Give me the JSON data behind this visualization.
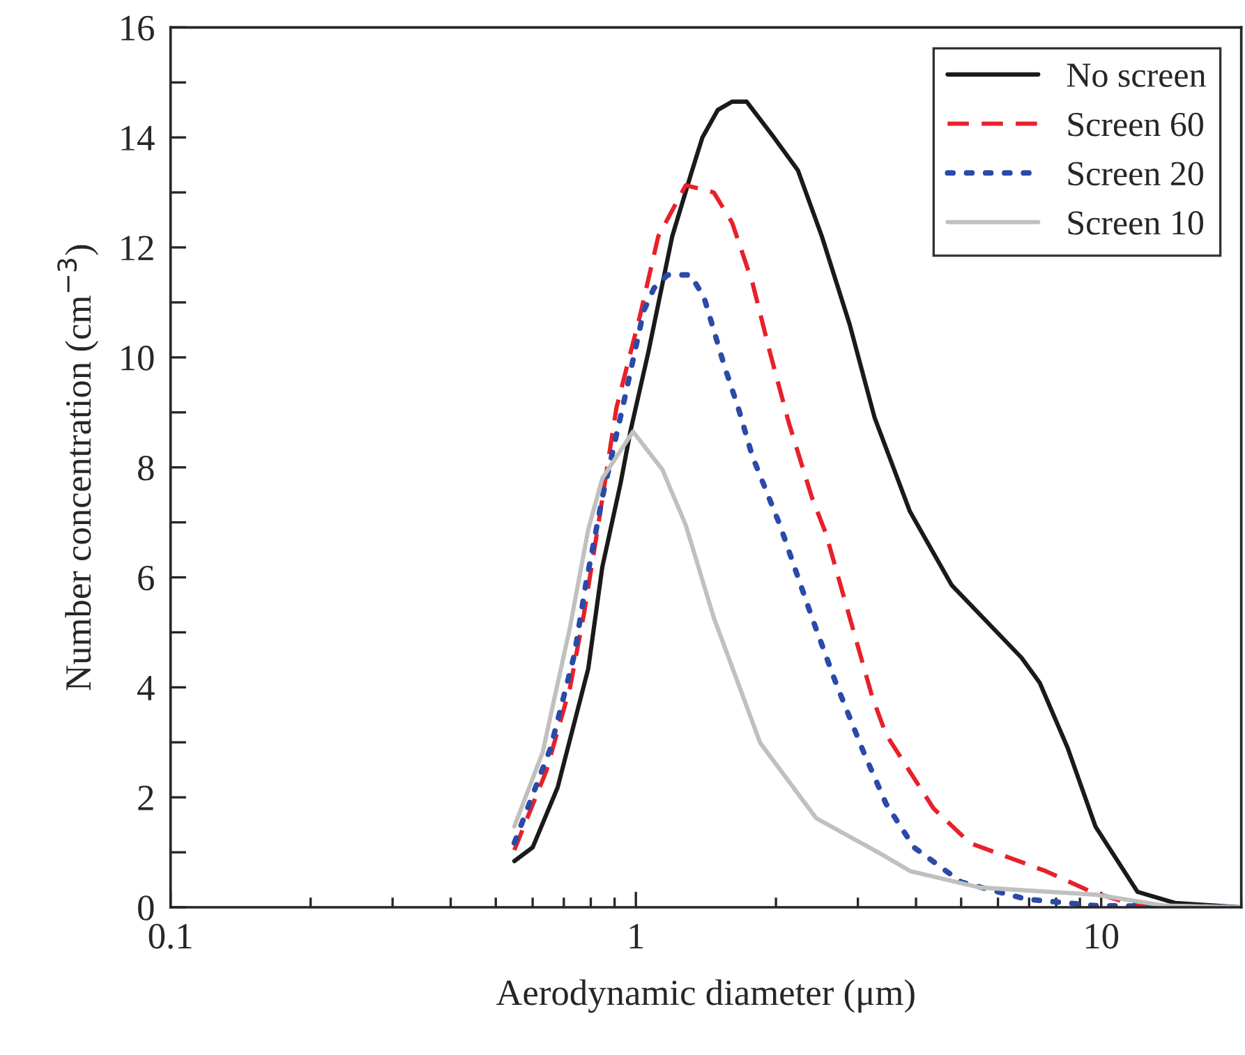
{
  "chart_data": {
    "type": "line",
    "xlabel": "Aerodynamic diameter (μm)",
    "ylabel": "Number concentration (cm$^{−3}$)",
    "log": "x",
    "xlim": [
      0.1,
      20
    ],
    "xticks": [
      {
        "value": 0.1,
        "label": "0.1"
      },
      1,
      10
    ],
    "ylim": [
      0,
      16
    ],
    "yticks": [
      0,
      {
        "value": 1,
        "label": null
      },
      2,
      {
        "value": 3,
        "label": null
      },
      4,
      {
        "value": 5,
        "label": null
      },
      6,
      {
        "value": 7,
        "label": null
      },
      8,
      {
        "value": 9,
        "label": null
      },
      10,
      {
        "value": 11,
        "label": null
      },
      12,
      {
        "value": 13,
        "label": null
      },
      14,
      {
        "value": 15,
        "label": null
      },
      16
    ],
    "grid": false,
    "legend": "top right",
    "series": [
      {
        "name": "No screen",
        "color": "#1a1a1a",
        "line_style": "solid",
        "x": [
          0.548,
          0.6,
          0.679,
          0.79,
          0.847,
          0.927,
          0.973,
          1.064,
          1.197,
          1.31,
          1.39,
          1.5,
          1.61,
          1.73,
          1.98,
          2.23,
          2.51,
          2.88,
          3.26,
          3.88,
          4.77,
          6.74,
          7.38,
          8.47,
          9.72,
          11.97,
          14.4,
          20
        ],
        "values": [
          0.84,
          1.09,
          2.18,
          4.34,
          6.19,
          7.71,
          8.65,
          10.1,
          12.2,
          13.3,
          14.0,
          14.5,
          14.65,
          14.65,
          14.0,
          13.4,
          12.2,
          10.6,
          8.9,
          7.2,
          5.86,
          4.54,
          4.08,
          2.9,
          1.47,
          0.28,
          0.08,
          0
        ]
      },
      {
        "name": "Screen 60",
        "color": "#e8202a",
        "line_style": "dashed",
        "x": [
          0.548,
          0.642,
          0.722,
          0.774,
          0.83,
          0.908,
          1.02,
          1.117,
          1.28,
          1.47,
          1.61,
          1.78,
          1.94,
          2.13,
          2.39,
          2.56,
          3.22,
          3.45,
          4.36,
          5.22,
          7.59,
          9.53,
          11.97,
          20
        ],
        "values": [
          1.04,
          2.48,
          4.0,
          5.35,
          6.95,
          9.08,
          10.75,
          12.2,
          13.13,
          13.0,
          12.45,
          11.36,
          10.1,
          8.82,
          7.45,
          6.8,
          3.83,
          3.14,
          1.8,
          1.17,
          0.66,
          0.28,
          0.03,
          0
        ]
      },
      {
        "name": "Screen 20",
        "color": "#2b4aa8",
        "line_style": "dotted",
        "x": [
          0.548,
          0.656,
          0.738,
          0.78,
          0.847,
          0.94,
          1.04,
          1.094,
          1.17,
          1.31,
          1.4,
          1.55,
          1.66,
          1.78,
          2.04,
          2.39,
          2.69,
          3.09,
          3.45,
          3.96,
          5.0,
          6.88,
          9.72,
          20
        ],
        "values": [
          1.17,
          2.9,
          4.6,
          5.86,
          7.45,
          9.15,
          10.85,
          11.26,
          11.5,
          11.5,
          11.1,
          9.84,
          9.08,
          8.2,
          6.95,
          5.27,
          4.08,
          2.81,
          1.88,
          1.09,
          0.46,
          0.15,
          0.03,
          0
        ]
      },
      {
        "name": "Screen 10",
        "color": "#c0c0c0",
        "line_style": "solid",
        "x": [
          0.548,
          0.63,
          0.722,
          0.79,
          0.847,
          0.986,
          1.14,
          1.28,
          1.47,
          1.85,
          2.44,
          3.38,
          3.88,
          5.48,
          9.72,
          13.7,
          20
        ],
        "values": [
          1.47,
          2.81,
          5.1,
          6.87,
          7.8,
          8.65,
          7.96,
          6.95,
          5.27,
          2.99,
          1.62,
          0.96,
          0.66,
          0.36,
          0.23,
          0.03,
          0
        ]
      }
    ]
  }
}
